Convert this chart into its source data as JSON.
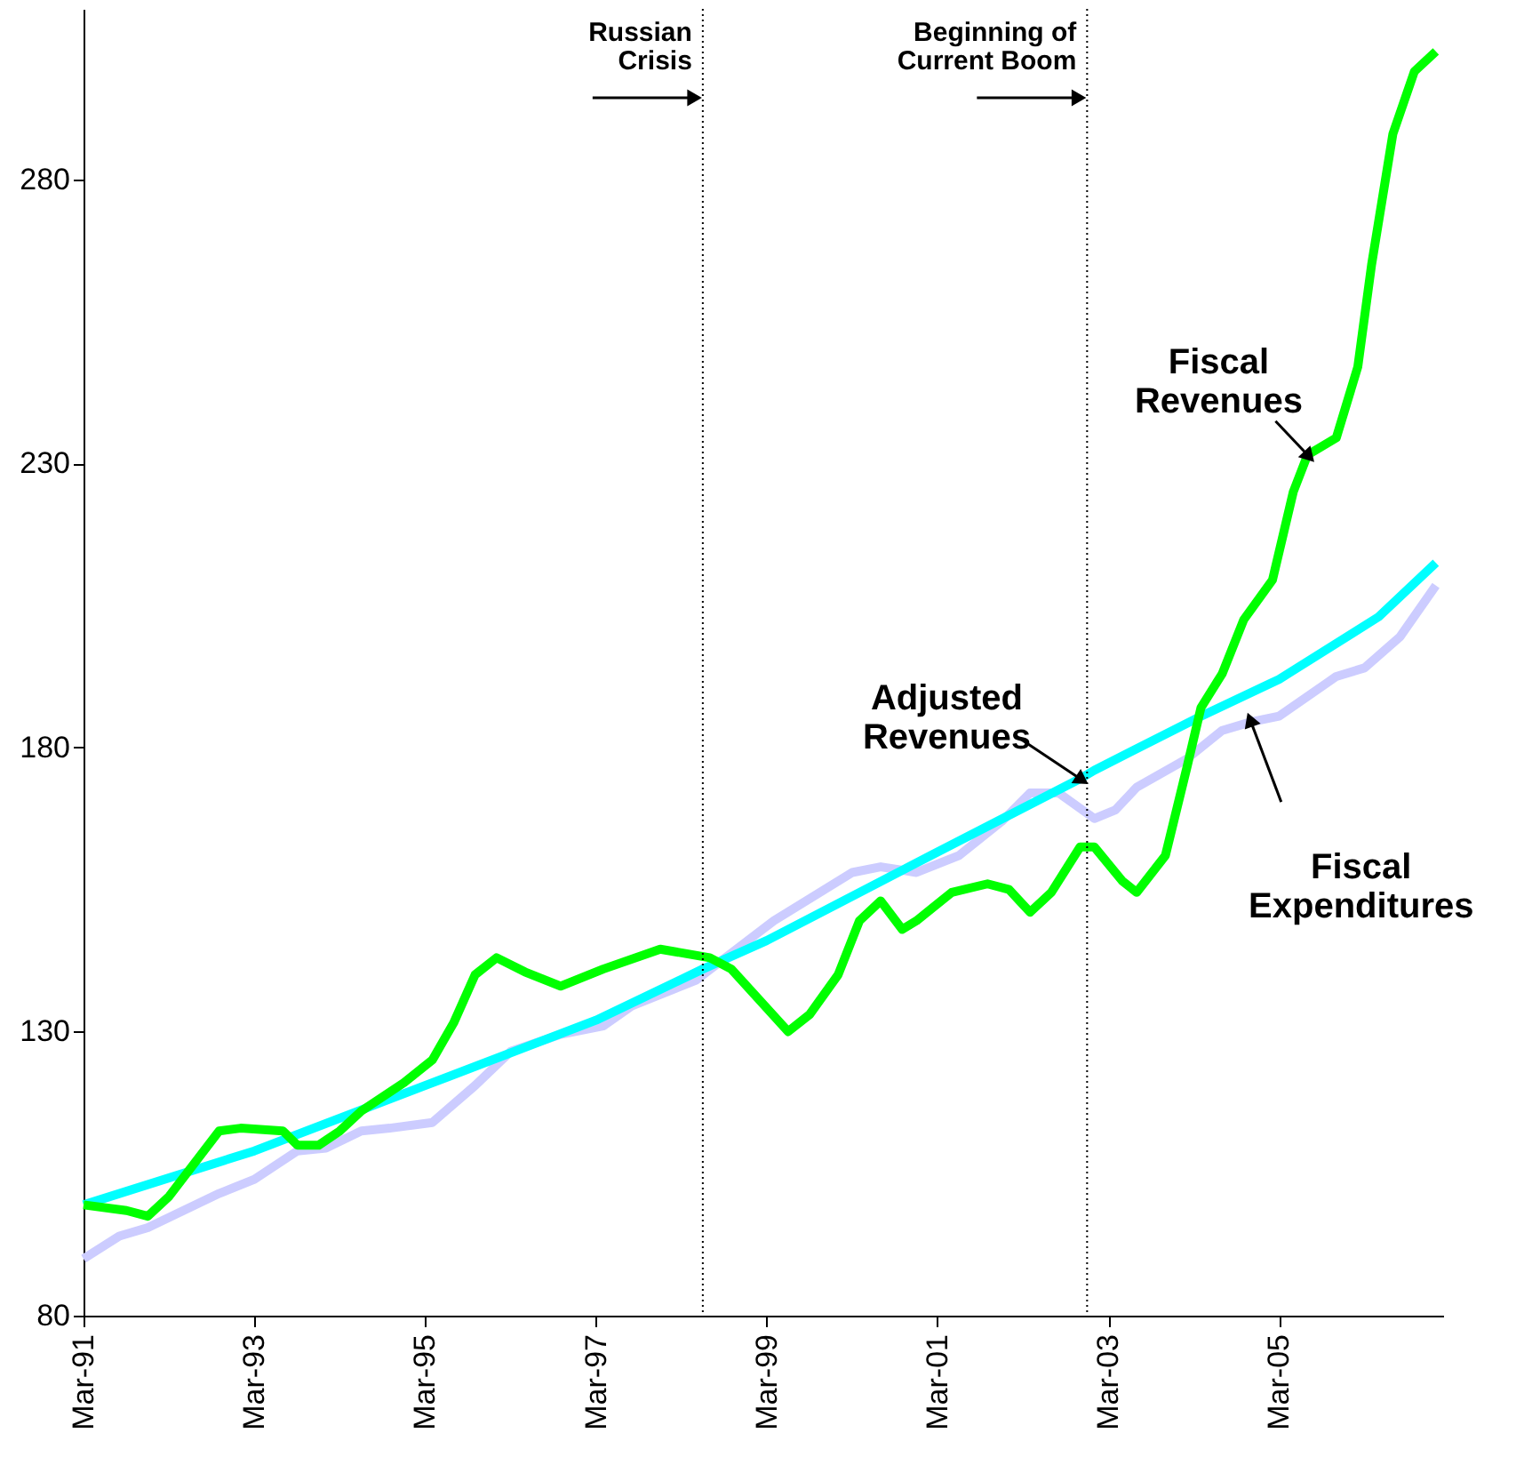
{
  "chart_data": {
    "type": "line",
    "xlim": [
      "1991-03",
      "2007-02"
    ],
    "xticks": [
      {
        "value": "1991-03",
        "label": "Mar-91"
      },
      {
        "value": "1993-03",
        "label": "Mar-93"
      },
      {
        "value": "1995-03",
        "label": "Mar-95"
      },
      {
        "value": "1997-03",
        "label": "Mar-97"
      },
      {
        "value": "1999-03",
        "label": "Mar-99"
      },
      {
        "value": "2001-03",
        "label": "Mar-01"
      },
      {
        "value": "2003-03",
        "label": "Mar-03"
      },
      {
        "value": "2005-03",
        "label": "Mar-05"
      }
    ],
    "ylim": [
      80,
      310
    ],
    "yticks": [
      80,
      130,
      180,
      230,
      280
    ],
    "grid": false,
    "marker": "none",
    "line_style": "solid",
    "ref_lines": [
      {
        "axis": "x",
        "value": "1998-06",
        "label": "Russian\nCrisis",
        "color": "#000000",
        "line_style": "dotted"
      },
      {
        "axis": "x",
        "value": "2002-12",
        "label": "Beginning of\nCurrent Boom",
        "color": "#000000",
        "line_style": "dotted"
      }
    ],
    "series": [
      {
        "name": "Fiscal Expenditures",
        "color": "#ccccff",
        "x": [
          "1991-03",
          "1991-08",
          "1991-12",
          "1992-10",
          "1993-03",
          "1993-09",
          "1994-01",
          "1994-06",
          "1994-10",
          "1995-04",
          "1995-10",
          "1996-03",
          "1996-10",
          "1997-04",
          "1997-08",
          "1998-05",
          "1999-04",
          "2000-03",
          "2000-07",
          "2000-12",
          "2001-06",
          "2001-12",
          "2002-04",
          "2002-08",
          "2003-01",
          "2003-04",
          "2003-07",
          "2004-02",
          "2004-07",
          "2004-11",
          "2005-03",
          "2005-11",
          "2006-03",
          "2006-08",
          "2007-01"
        ],
        "values": [
          90,
          94,
          95.5,
          101.5,
          104,
          109,
          109.5,
          112.5,
          113,
          114,
          120.5,
          126.5,
          129.5,
          131,
          134.5,
          139,
          149.5,
          158,
          159,
          158,
          161,
          167,
          172,
          172,
          167.5,
          169,
          173,
          178,
          183,
          184.5,
          185.5,
          192.5,
          194,
          199.5,
          208.5
        ]
      },
      {
        "name": "Adjusted Revenues",
        "color": "#00ffff",
        "x": [
          "1991-03",
          "1993-03",
          "1995-03",
          "1997-03",
          "1998-06",
          "1999-03",
          "2001-02",
          "2002-11",
          "2003-01",
          "2004-04",
          "2005-03",
          "2006-05",
          "2007-01"
        ],
        "values": [
          99.5,
          109,
          120.5,
          132,
          141,
          146,
          161,
          174.5,
          176,
          185.5,
          192,
          203,
          212.5
        ]
      },
      {
        "name": "Fiscal Revenues",
        "color": "#00ff00",
        "x": [
          "1991-03",
          "1991-09",
          "1991-12",
          "1992-03",
          "1992-10",
          "1993-01",
          "1993-07",
          "1993-09",
          "1993-12",
          "1994-03",
          "1994-06",
          "1994-12",
          "1995-04",
          "1995-07",
          "1995-10",
          "1996-01",
          "1996-05",
          "1996-10",
          "1997-04",
          "1997-12",
          "1998-07",
          "1998-10",
          "1999-06",
          "1999-09",
          "2000-01",
          "2000-04",
          "2000-07",
          "2000-10",
          "2000-12",
          "2001-05",
          "2001-10",
          "2002-01",
          "2002-04",
          "2002-07",
          "2002-11",
          "2003-01",
          "2003-05",
          "2003-07",
          "2003-11",
          "2004-02",
          "2004-04",
          "2004-07",
          "2004-10",
          "2005-02",
          "2005-05",
          "2005-07",
          "2005-11",
          "2006-02",
          "2006-04",
          "2006-07",
          "2006-10",
          "2007-01"
        ],
        "values": [
          99.5,
          98.5,
          97.5,
          101,
          112.5,
          113,
          112.5,
          110,
          110,
          112.5,
          116,
          121,
          125,
          131.5,
          140,
          143,
          140.5,
          138,
          141,
          144.5,
          143,
          141,
          130,
          133,
          140,
          149.5,
          153,
          148,
          149.5,
          154.5,
          156,
          155,
          151,
          154.5,
          162.5,
          162.5,
          156.5,
          154.5,
          161,
          176.5,
          187,
          193,
          202.5,
          209.5,
          225,
          231.5,
          234.5,
          247,
          265,
          288,
          299,
          302.5
        ]
      }
    ]
  }
}
